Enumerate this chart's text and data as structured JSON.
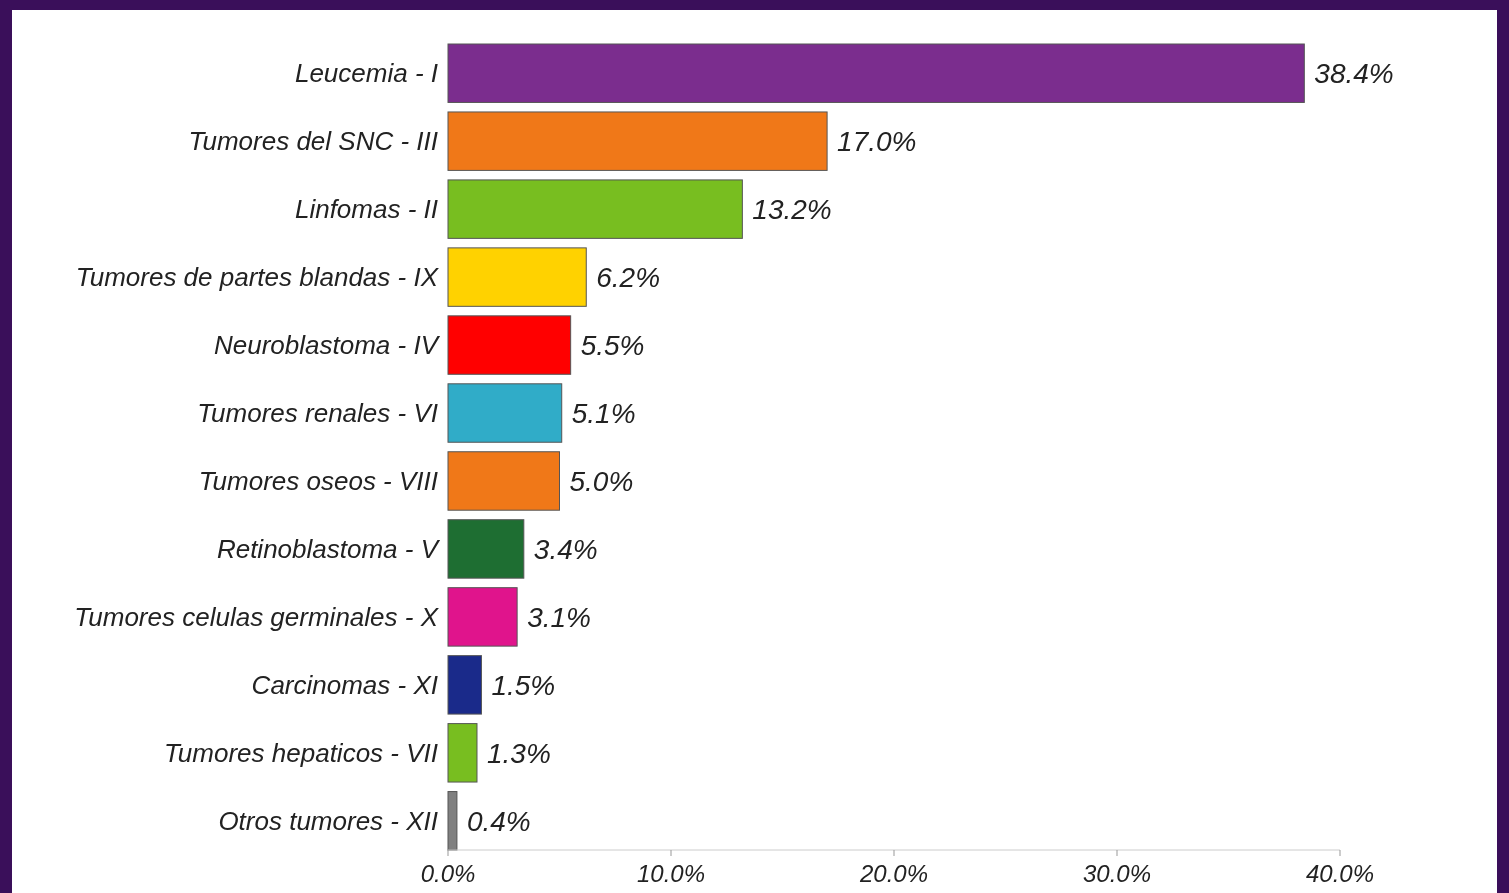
{
  "chart_data": {
    "type": "bar",
    "orientation": "horizontal",
    "categories": [
      "Leucemia - I",
      "Tumores del SNC - III",
      "Linfomas - II",
      "Tumores de partes blandas - IX",
      "Neuroblastoma - IV",
      "Tumores renales - VI",
      "Tumores oseos - VIII",
      "Retinoblastoma - V",
      "Tumores celulas germinales - X",
      "Carcinomas - XI",
      "Tumores hepaticos - VII",
      "Otros tumores - XII"
    ],
    "values": [
      38.4,
      17.0,
      13.2,
      6.2,
      5.5,
      5.1,
      5.0,
      3.4,
      3.1,
      1.5,
      1.3,
      0.4
    ],
    "colors": [
      "#7b2d8e",
      "#f07818",
      "#78be20",
      "#ffd200",
      "#ff0000",
      "#30acc8",
      "#f07818",
      "#1e6e32",
      "#e0148c",
      "#1a2a8a",
      "#78be20",
      "#808080"
    ],
    "value_labels": [
      "38.4%",
      "17.0%",
      "13.2%",
      "6.2%",
      "5.5%",
      "5.1%",
      "5.0%",
      "3.4%",
      "3.1%",
      "1.5%",
      "1.3%",
      "0.4%"
    ],
    "xlim": [
      0,
      40
    ],
    "xticks": [
      {
        "value": 0,
        "label": "0.0%"
      },
      {
        "value": 10,
        "label": "10.0%"
      },
      {
        "value": 20,
        "label": "20.0%"
      },
      {
        "value": 30,
        "label": "30.0%"
      },
      {
        "value": 40,
        "label": "40.0%"
      }
    ],
    "tick_labels": "x"
  }
}
